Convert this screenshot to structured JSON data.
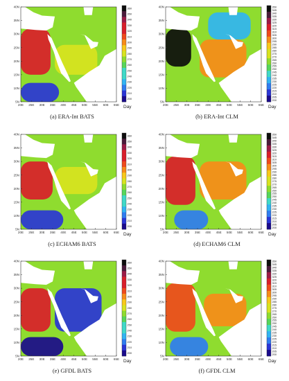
{
  "colors": {
    "sea": "#ffffff",
    "ramp": [
      "#1a0a8c",
      "#2a35d6",
      "#2f7cf0",
      "#31b4f2",
      "#3fd9c8",
      "#57d65a",
      "#8fdc2f",
      "#d8e31f",
      "#f8c81a",
      "#f78b19",
      "#ef4a1c",
      "#d91e2a",
      "#9c1a46",
      "#4a1a3a",
      "#0d0d0d"
    ]
  },
  "chart_data": [
    {
      "type": "heatmap",
      "caption": "(a)   ERA-Int BATS",
      "x_ticks": [
        "20E",
        "25E",
        "30E",
        "35E",
        "40E",
        "45E",
        "50E",
        "55E",
        "60E",
        "65E"
      ],
      "y_ticks": [
        "5N",
        "10N",
        "15N",
        "20N",
        "25N",
        "30N",
        "35N",
        "40N"
      ],
      "xlim": [
        20,
        65
      ],
      "ylim": [
        5,
        40
      ],
      "colorbar": {
        "ticks": [
          360,
          350,
          340,
          330,
          320,
          310,
          300,
          290,
          280,
          270,
          260,
          250,
          240,
          230,
          220,
          210,
          200
        ],
        "unit": "Day",
        "range": [
          200,
          360
        ]
      },
      "regions": [
        {
          "name": "",
          "x": [
            20,
            34
          ],
          "y": [
            15,
            32
          ],
          "value": 320
        },
        {
          "name": "",
          "x": [
            36,
            56
          ],
          "y": [
            15,
            26
          ],
          "value": 280
        },
        {
          "name": "",
          "x": [
            20,
            38
          ],
          "y": [
            5,
            12
          ],
          "value": 210
        }
      ]
    },
    {
      "type": "heatmap",
      "caption": "(b)   ERA-Int CLM",
      "x_ticks": [
        "20E",
        "25E",
        "30E",
        "35E",
        "40E",
        "45E",
        "50E",
        "55E",
        "60E",
        "65E"
      ],
      "y_ticks": [
        "5N",
        "10N",
        "15N",
        "20N",
        "25N",
        "30N",
        "35N",
        "40N"
      ],
      "xlim": [
        20,
        65
      ],
      "ylim": [
        5,
        40
      ],
      "colorbar": {
        "ticks": [
          350,
          345,
          340,
          335,
          330,
          325,
          320,
          315,
          310,
          305,
          300,
          295,
          290,
          285,
          280,
          275,
          270,
          265,
          260,
          255,
          250,
          245,
          240,
          235,
          230,
          225,
          220,
          215,
          210,
          205,
          200
        ],
        "unit": "Day",
        "range": [
          200,
          350
        ]
      },
      "regions": [
        {
          "name": "",
          "x": [
            20,
            32
          ],
          "y": [
            18,
            32
          ],
          "value": 345
        },
        {
          "name": "",
          "x": [
            36,
            58
          ],
          "y": [
            14,
            28
          ],
          "value": 300
        },
        {
          "name": "",
          "x": [
            40,
            60
          ],
          "y": [
            28,
            38
          ],
          "value": 230
        }
      ]
    },
    {
      "type": "heatmap",
      "caption": "(c)   ECHAM6 BATS",
      "x_ticks": [
        "20E",
        "25E",
        "30E",
        "35E",
        "40E",
        "45E",
        "50E",
        "55E",
        "60E",
        "65E"
      ],
      "y_ticks": [
        "5N",
        "10N",
        "15N",
        "20N",
        "25N",
        "30N",
        "35N",
        "40N"
      ],
      "xlim": [
        20,
        65
      ],
      "ylim": [
        5,
        40
      ],
      "colorbar": {
        "ticks": [
          360,
          350,
          340,
          330,
          320,
          310,
          300,
          290,
          280,
          270,
          260,
          250,
          240,
          230,
          220,
          210,
          200
        ],
        "unit": "Day",
        "range": [
          200,
          360
        ]
      },
      "regions": [
        {
          "name": "",
          "x": [
            20,
            35
          ],
          "y": [
            16,
            30
          ],
          "value": 330
        },
        {
          "name": "",
          "x": [
            36,
            56
          ],
          "y": [
            18,
            28
          ],
          "value": 280
        },
        {
          "name": "",
          "x": [
            20,
            40
          ],
          "y": [
            5,
            12
          ],
          "value": 210
        }
      ]
    },
    {
      "type": "heatmap",
      "caption": "(d)   ECHAM6 CLM",
      "x_ticks": [
        "20E",
        "25E",
        "30E",
        "35E",
        "40E",
        "45E",
        "50E",
        "55E",
        "60E",
        "65E"
      ],
      "y_ticks": [
        "5N",
        "10N",
        "15N",
        "20N",
        "25N",
        "30N",
        "35N",
        "40N"
      ],
      "xlim": [
        20,
        65
      ],
      "ylim": [
        5,
        40
      ],
      "colorbar": {
        "ticks": [
          350,
          345,
          340,
          335,
          330,
          325,
          320,
          315,
          310,
          305,
          300,
          295,
          290,
          285,
          280,
          275,
          270,
          265,
          260,
          255,
          250,
          245,
          240,
          235,
          230,
          225,
          220,
          215,
          210,
          205,
          200
        ],
        "unit": "Day",
        "range": [
          200,
          350
        ]
      },
      "regions": [
        {
          "name": "",
          "x": [
            20,
            34
          ],
          "y": [
            14,
            32
          ],
          "value": 320
        },
        {
          "name": "",
          "x": [
            36,
            58
          ],
          "y": [
            16,
            30
          ],
          "value": 300
        },
        {
          "name": "",
          "x": [
            24,
            40
          ],
          "y": [
            5,
            12
          ],
          "value": 220
        }
      ]
    },
    {
      "type": "heatmap",
      "caption": "(e)   GFDL BATS",
      "x_ticks": [
        "20E",
        "25E",
        "30E",
        "35E",
        "40E",
        "45E",
        "50E",
        "55E",
        "60E",
        "65E"
      ],
      "y_ticks": [
        "5N",
        "10N",
        "15N",
        "20N",
        "25N",
        "30N",
        "35N",
        "40N"
      ],
      "xlim": [
        20,
        65
      ],
      "ylim": [
        5,
        40
      ],
      "colorbar": {
        "ticks": [
          360,
          350,
          340,
          330,
          320,
          310,
          300,
          290,
          280,
          270,
          260,
          250,
          240,
          230,
          220,
          210,
          200
        ],
        "unit": "Day",
        "range": [
          200,
          360
        ]
      },
      "regions": [
        {
          "name": "",
          "x": [
            20,
            34
          ],
          "y": [
            14,
            30
          ],
          "value": 320
        },
        {
          "name": "",
          "x": [
            36,
            58
          ],
          "y": [
            14,
            30
          ],
          "value": 215
        },
        {
          "name": "",
          "x": [
            20,
            40
          ],
          "y": [
            5,
            12
          ],
          "value": 205
        }
      ]
    },
    {
      "type": "heatmap",
      "caption": "(f)   GFDL CLM",
      "x_ticks": [
        "20E",
        "25E",
        "30E",
        "35E",
        "40E",
        "45E",
        "50E",
        "55E",
        "60E",
        "65E"
      ],
      "y_ticks": [
        "5N",
        "10N",
        "15N",
        "20N",
        "25N",
        "30N",
        "35N",
        "40N"
      ],
      "xlim": [
        20,
        65
      ],
      "ylim": [
        5,
        40
      ],
      "colorbar": {
        "ticks": [
          350,
          345,
          340,
          335,
          330,
          325,
          320,
          315,
          310,
          305,
          300,
          295,
          290,
          285,
          280,
          275,
          270,
          265,
          260,
          255,
          250,
          245,
          240,
          235,
          230,
          225,
          220,
          215,
          210,
          205,
          200
        ],
        "unit": "Day",
        "range": [
          200,
          350
        ]
      },
      "regions": [
        {
          "name": "",
          "x": [
            20,
            34
          ],
          "y": [
            14,
            32
          ],
          "value": 310
        },
        {
          "name": "",
          "x": [
            38,
            58
          ],
          "y": [
            16,
            28
          ],
          "value": 300
        },
        {
          "name": "",
          "x": [
            22,
            40
          ],
          "y": [
            5,
            12
          ],
          "value": 225
        }
      ]
    }
  ]
}
